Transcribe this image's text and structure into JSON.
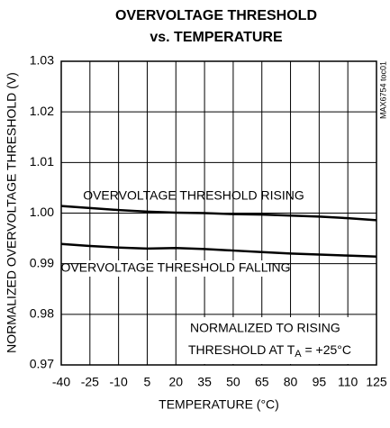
{
  "chart_data": {
    "type": "line",
    "title": [
      "OVERVOLTAGE THRESHOLD",
      "vs. TEMPERATURE"
    ],
    "xlabel": "TEMPERATURE (°C)",
    "ylabel": "NORMALIZED OVERVOLTAGE THRESHOLD (V)",
    "side_label": "MAX6754 toc01",
    "x": [
      -40,
      -25,
      -10,
      5,
      20,
      35,
      50,
      65,
      80,
      95,
      110,
      125
    ],
    "series": [
      {
        "name": "OVERVOLTAGE THRESHOLD RISING",
        "color": "#000000",
        "values": [
          1.0014,
          1.001,
          1.0006,
          1.0003,
          1.0001,
          1.0,
          0.9998,
          0.9997,
          0.9995,
          0.9993,
          0.999,
          0.9986
        ]
      },
      {
        "name": "OVERVOLTAGE THRESHOLD FALLING",
        "color": "#000000",
        "values": [
          0.9939,
          0.9935,
          0.9932,
          0.993,
          0.9931,
          0.9929,
          0.9926,
          0.9923,
          0.992,
          0.9918,
          0.9916,
          0.9914
        ]
      }
    ],
    "note": {
      "line1": "NORMALIZED TO RISING",
      "line2": "THRESHOLD AT T",
      "subscript": "A",
      "line2_end": " = +25°C"
    },
    "xlim": [
      -40,
      125
    ],
    "xticks": [
      -40,
      -25,
      -10,
      5,
      20,
      35,
      50,
      65,
      80,
      95,
      110,
      125
    ],
    "ylim": [
      0.97,
      1.03
    ],
    "yticks": [
      0.97,
      0.98,
      0.99,
      {
        "value": 1,
        "label": "1.00"
      },
      1.01,
      1.02,
      1.03
    ],
    "grid": true
  }
}
